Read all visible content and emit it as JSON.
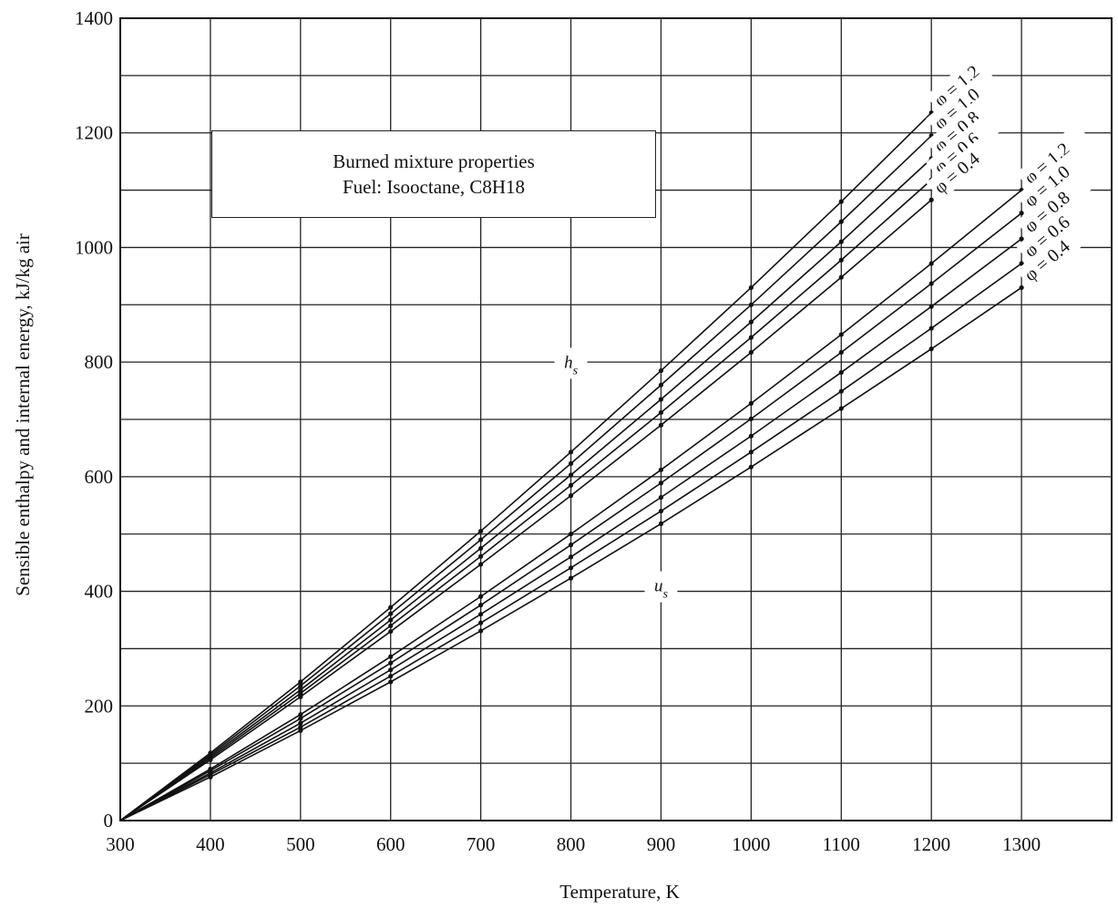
{
  "chart_data": {
    "type": "line",
    "title": "Burned mixture properties",
    "subtitle": "Fuel: Isooctane, C8H18",
    "xlabel": "Temperature, K",
    "ylabel": "Sensible enthalpy and internal energy, kJ/kg air",
    "xlim": [
      300,
      1400
    ],
    "ylim": [
      0,
      1400
    ],
    "x_ticks": [
      "300",
      "400",
      "500",
      "600",
      "700",
      "800",
      "900",
      "1000",
      "1100",
      "1200",
      "1300"
    ],
    "y_ticks": [
      "0",
      "200",
      "400",
      "600",
      "800",
      "1000",
      "1200",
      "1400"
    ],
    "grid": true,
    "curve_labels": {
      "enthalpy": "h_s",
      "internal_energy": "u_s"
    },
    "hs_series": [
      {
        "name": "φ = 1.2",
        "x": [
          300,
          400,
          500,
          600,
          700,
          800,
          900,
          1000,
          1100,
          1200
        ],
        "y": [
          0,
          118,
          242,
          372,
          505,
          643,
          785,
          930,
          1080,
          1235
        ]
      },
      {
        "name": "φ = 1.0",
        "x": [
          300,
          400,
          500,
          600,
          700,
          800,
          900,
          1000,
          1100,
          1200
        ],
        "y": [
          0,
          115,
          235,
          361,
          490,
          623,
          760,
          900,
          1045,
          1195
        ]
      },
      {
        "name": "φ = 0.8",
        "x": [
          300,
          400,
          500,
          600,
          700,
          800,
          900,
          1000,
          1100,
          1200
        ],
        "y": [
          0,
          112,
          228,
          350,
          475,
          603,
          735,
          870,
          1010,
          1155
        ]
      },
      {
        "name": "φ = 0.6",
        "x": [
          300,
          400,
          500,
          600,
          700,
          800,
          900,
          1000,
          1100,
          1200
        ],
        "y": [
          0,
          109,
          222,
          340,
          461,
          585,
          712,
          843,
          978,
          1118
        ]
      },
      {
        "name": "φ = 0.4",
        "x": [
          300,
          400,
          500,
          600,
          700,
          800,
          900,
          1000,
          1100,
          1200
        ],
        "y": [
          0,
          106,
          216,
          330,
          447,
          567,
          690,
          817,
          948,
          1083
        ]
      }
    ],
    "us_series": [
      {
        "name": "φ = 1.2",
        "x": [
          300,
          400,
          500,
          600,
          700,
          800,
          900,
          1000,
          1100,
          1200,
          1300
        ],
        "y": [
          0,
          90,
          185,
          286,
          391,
          500,
          612,
          728,
          848,
          972,
          1100
        ]
      },
      {
        "name": "φ = 1.0",
        "x": [
          300,
          400,
          500,
          600,
          700,
          800,
          900,
          1000,
          1100,
          1200,
          1300
        ],
        "y": [
          0,
          87,
          178,
          275,
          376,
          481,
          589,
          701,
          817,
          937,
          1060
        ]
      },
      {
        "name": "φ = 0.8",
        "x": [
          300,
          400,
          500,
          600,
          700,
          800,
          900,
          1000,
          1100,
          1200,
          1300
        ],
        "y": [
          0,
          83,
          170,
          263,
          360,
          460,
          564,
          671,
          782,
          897,
          1015
        ]
      },
      {
        "name": "φ = 0.6",
        "x": [
          300,
          400,
          500,
          600,
          700,
          800,
          900,
          1000,
          1100,
          1200,
          1300
        ],
        "y": [
          0,
          80,
          163,
          252,
          345,
          441,
          540,
          643,
          749,
          859,
          972
        ]
      },
      {
        "name": "φ = 0.4",
        "x": [
          300,
          400,
          500,
          600,
          700,
          800,
          900,
          1000,
          1100,
          1200,
          1300
        ],
        "y": [
          0,
          76,
          157,
          242,
          331,
          423,
          518,
          617,
          719,
          823,
          930
        ]
      }
    ]
  }
}
